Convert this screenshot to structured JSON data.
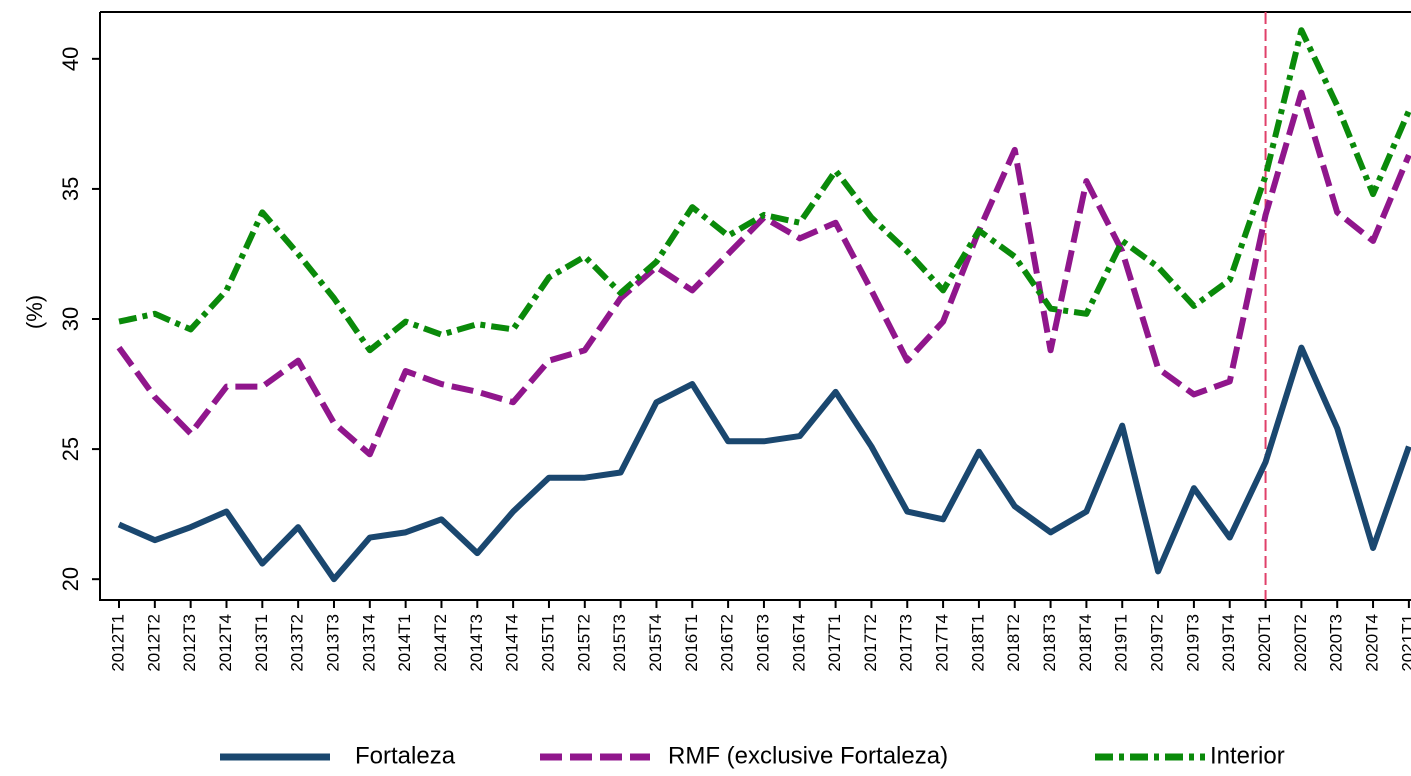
{
  "chart_data": {
    "type": "line",
    "ylabel": "(%)",
    "categories": [
      "2012T1",
      "2012T2",
      "2012T3",
      "2012T4",
      "2013T1",
      "2013T2",
      "2013T3",
      "2013T4",
      "2014T1",
      "2014T2",
      "2014T3",
      "2014T4",
      "2015T1",
      "2015T2",
      "2015T3",
      "2015T4",
      "2016T1",
      "2016T2",
      "2016T3",
      "2016T4",
      "2017T1",
      "2017T2",
      "2017T3",
      "2017T4",
      "2018T1",
      "2018T2",
      "2018T3",
      "2018T4",
      "2019T1",
      "2019T2",
      "2019T3",
      "2019T4",
      "2020T1",
      "2020T2",
      "2020T3",
      "2020T4",
      "2021T1"
    ],
    "series": [
      {
        "name": "Fortaleza",
        "color": "#1a476f",
        "dash": "solid",
        "values": [
          22.1,
          21.5,
          22.0,
          22.6,
          20.6,
          22.0,
          20.0,
          21.6,
          21.8,
          22.3,
          21.0,
          22.6,
          23.9,
          23.9,
          24.1,
          26.8,
          27.5,
          25.3,
          25.3,
          25.5,
          27.2,
          25.1,
          22.6,
          22.3,
          24.9,
          22.8,
          21.8,
          22.6,
          25.9,
          20.3,
          23.5,
          21.6,
          24.5,
          28.9,
          25.8,
          21.2,
          25.1
        ]
      },
      {
        "name": "RMF (exclusive Fortaleza)",
        "color": "#90168c",
        "dash": "dash",
        "values": [
          28.9,
          27.0,
          25.6,
          27.4,
          27.4,
          28.4,
          26.0,
          24.8,
          28.0,
          27.5,
          27.2,
          26.8,
          28.4,
          28.8,
          30.8,
          32.0,
          31.1,
          32.5,
          33.9,
          33.1,
          33.7,
          31.1,
          28.4,
          29.9,
          33.4,
          36.5,
          28.8,
          35.3,
          32.6,
          28.1,
          27.1,
          27.6,
          34.0,
          38.7,
          34.1,
          33.0,
          36.3
        ]
      },
      {
        "name": "Interior",
        "color": "#0a8a0a",
        "dash": "dashdot",
        "values": [
          29.9,
          30.2,
          29.6,
          31.1,
          34.1,
          32.5,
          30.8,
          28.8,
          29.9,
          29.4,
          29.8,
          29.6,
          31.6,
          32.4,
          31.0,
          32.2,
          34.3,
          33.2,
          34.0,
          33.7,
          35.7,
          33.9,
          32.6,
          31.1,
          33.4,
          32.4,
          30.4,
          30.2,
          33.0,
          32.0,
          30.5,
          31.5,
          35.5,
          41.1,
          38.2,
          34.8,
          38.0
        ]
      }
    ],
    "ylim": [
      19.2,
      41.8
    ],
    "yticks": [
      20,
      25,
      30,
      35,
      40
    ],
    "vline": {
      "category": "2020T1",
      "color": "#e0406a"
    },
    "legend": "bottom"
  }
}
